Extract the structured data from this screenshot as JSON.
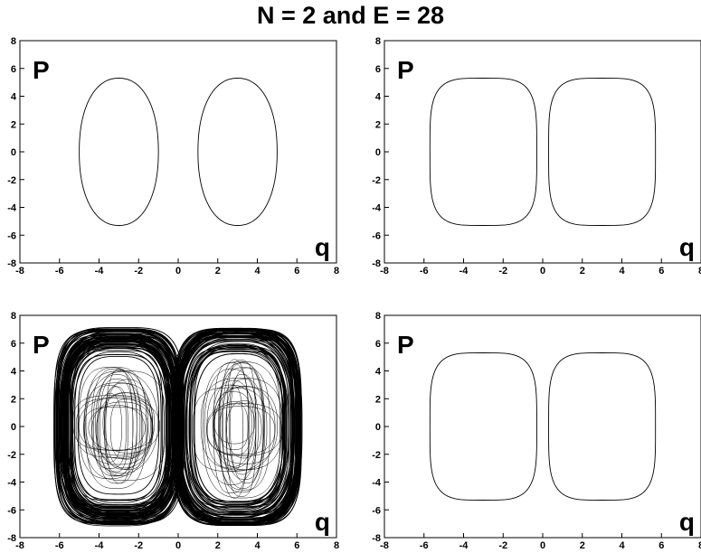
{
  "title": "N = 2 and E = 28",
  "chart_data": [
    {
      "type": "line",
      "panel": "top-left",
      "xlabel": "q",
      "ylabel": "P",
      "xlim": [
        -8,
        8
      ],
      "ylim": [
        -8,
        8
      ],
      "x_ticks": [
        -8,
        -6,
        -4,
        -2,
        0,
        2,
        4,
        6,
        8
      ],
      "y_ticks": [
        -8,
        -6,
        -4,
        -2,
        0,
        2,
        4,
        6,
        8
      ],
      "grid": false,
      "series": [
        {
          "shape": "closed-orbit",
          "center_q": -3.0,
          "half_width": 2.0,
          "half_height": 5.3,
          "exponent": 2.2
        },
        {
          "shape": "closed-orbit",
          "center_q": 3.0,
          "half_width": 2.0,
          "half_height": 5.3,
          "exponent": 2.2
        }
      ]
    },
    {
      "type": "line",
      "panel": "top-right",
      "xlabel": "q",
      "ylabel": "P",
      "xlim": [
        -8,
        8
      ],
      "ylim": [
        -8,
        8
      ],
      "x_ticks": [
        -8,
        -6,
        -4,
        -2,
        0,
        2,
        4,
        6,
        8
      ],
      "y_ticks": [
        -8,
        -6,
        -4,
        -2,
        0,
        2,
        4,
        6,
        8
      ],
      "grid": false,
      "series": [
        {
          "shape": "closed-orbit",
          "center_q": -3.0,
          "half_width": 2.7,
          "half_height": 5.3,
          "exponent": 4.0
        },
        {
          "shape": "closed-orbit",
          "center_q": 3.0,
          "half_width": 2.7,
          "half_height": 5.3,
          "exponent": 4.0
        }
      ]
    },
    {
      "type": "line",
      "panel": "bottom-left",
      "xlabel": "q",
      "ylabel": "P",
      "xlim": [
        -8,
        8
      ],
      "ylim": [
        -8,
        8
      ],
      "x_ticks": [
        -8,
        -6,
        -4,
        -2,
        0,
        2,
        4,
        6,
        8
      ],
      "y_ticks": [
        -8,
        -6,
        -4,
        -2,
        0,
        2,
        4,
        6,
        8
      ],
      "grid": false,
      "series": [
        {
          "shape": "chaotic-band",
          "center_q": -3.0,
          "half_width_range": [
            0.5,
            3.2
          ],
          "half_height_range": [
            1.5,
            7.1
          ]
        },
        {
          "shape": "chaotic-band",
          "center_q": 3.0,
          "half_width_range": [
            0.5,
            3.2
          ],
          "half_height_range": [
            1.5,
            7.1
          ]
        }
      ]
    },
    {
      "type": "line",
      "panel": "bottom-right",
      "xlabel": "q",
      "ylabel": "P",
      "xlim": [
        -8,
        8
      ],
      "ylim": [
        -8,
        8
      ],
      "x_ticks": [
        -8,
        -6,
        -4,
        -2,
        0,
        2,
        4,
        6,
        8
      ],
      "y_ticks": [
        -8,
        -6,
        -4,
        -2,
        0,
        2,
        4,
        6,
        8
      ],
      "grid": false,
      "series": [
        {
          "shape": "closed-orbit",
          "center_q": -3.0,
          "half_width": 2.7,
          "half_height": 5.3,
          "exponent": 4.0
        },
        {
          "shape": "closed-orbit",
          "center_q": 3.0,
          "half_width": 2.7,
          "half_height": 5.3,
          "exponent": 4.0
        }
      ]
    }
  ]
}
